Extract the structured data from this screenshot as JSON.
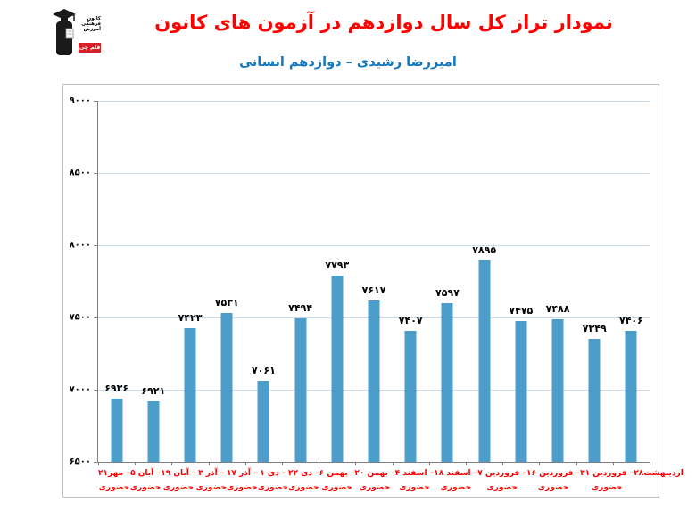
{
  "header": {
    "title": "نمودار تراز کل سال دوازدهم در آزمون های کانون",
    "subtitle": "امیررضا رشیدی – دوازدهم انسانی",
    "title_color": "#FF0000",
    "subtitle_color": "#1378BF"
  },
  "logo": {
    "name": "kanoon-ghalamchi-logo",
    "text_lines": [
      "کانون",
      "فرهنگی",
      "آموزش"
    ],
    "badge": "قلم چی",
    "figure_color": "#1a1a1a",
    "badge_color": "#d42127",
    "text_color": "#b02025"
  },
  "chart_data": {
    "type": "bar",
    "title": "نمودار تراز کل سال دوازدهم در آزمون های کانون",
    "subtitle": "امیررضا رشیدی – دوازدهم انسانی",
    "categories": [
      {
        "date": "۲۱مهر –",
        "mode": "حضوری"
      },
      {
        "date": "۵ آبان –",
        "mode": "حضوری"
      },
      {
        "date": "۱۹ آبان –",
        "mode": "حضوری"
      },
      {
        "date": "۳ آذر –",
        "mode": "حضوری"
      },
      {
        "date": "۱۷ آذر –",
        "mode": "حضوری"
      },
      {
        "date": "۱ دی –",
        "mode": "حضوری"
      },
      {
        "date": "۲۲ دی –",
        "mode": "حضوری"
      },
      {
        "date": "۶ بهمن –",
        "mode": "حضوری"
      },
      {
        "date": "۲۰ بهمن –",
        "mode": "حضوری"
      },
      {
        "date": "۴ اسفند –",
        "mode": "حضوری"
      },
      {
        "date": "۱۸ اسفند –",
        "mode": "حضوری"
      },
      {
        "date": "۷ فروردین –",
        "mode": "حضوری"
      },
      {
        "date": "۱۶ فروردین –",
        "mode": "حضوری"
      },
      {
        "date": "۳۱ فروردین –",
        "mode": "حضوری"
      },
      {
        "date": "۲۸اردیبهشت",
        "mode": ""
      }
    ],
    "values": [
      6936,
      6921,
      7423,
      7531,
      7061,
      7494,
      7793,
      7617,
      7407,
      7597,
      7895,
      7475,
      7488,
      7349,
      7406
    ],
    "value_labels": [
      "۶۹۳۶",
      "۶۹۲۱",
      "۷۴۲۳",
      "۷۵۳۱",
      "۷۰۶۱",
      "۷۴۹۴",
      "۷۷۹۳",
      "۷۶۱۷",
      "۷۴۰۷",
      "۷۵۹۷",
      "۷۸۹۵",
      "۷۴۷۵",
      "۷۴۸۸",
      "۷۳۴۹",
      "۷۴۰۶"
    ],
    "y_axis": {
      "min": 6500,
      "max": 9000,
      "step": 500,
      "tick_values": [
        9000,
        8500,
        8000,
        7500,
        7000,
        6500
      ],
      "tick_labels": [
        "۹۰۰۰",
        "۸۵۰۰",
        "۸۰۰۰",
        "۷۵۰۰",
        "۷۰۰۰",
        "۶۵۰۰"
      ]
    },
    "grid": true,
    "legend": "none",
    "bar_color": "#4D9DCB",
    "gridline_color": "#C8DCF0",
    "axis_color": "#808080",
    "value_label_color": "#000000",
    "category_label_color": "#FF0000"
  }
}
